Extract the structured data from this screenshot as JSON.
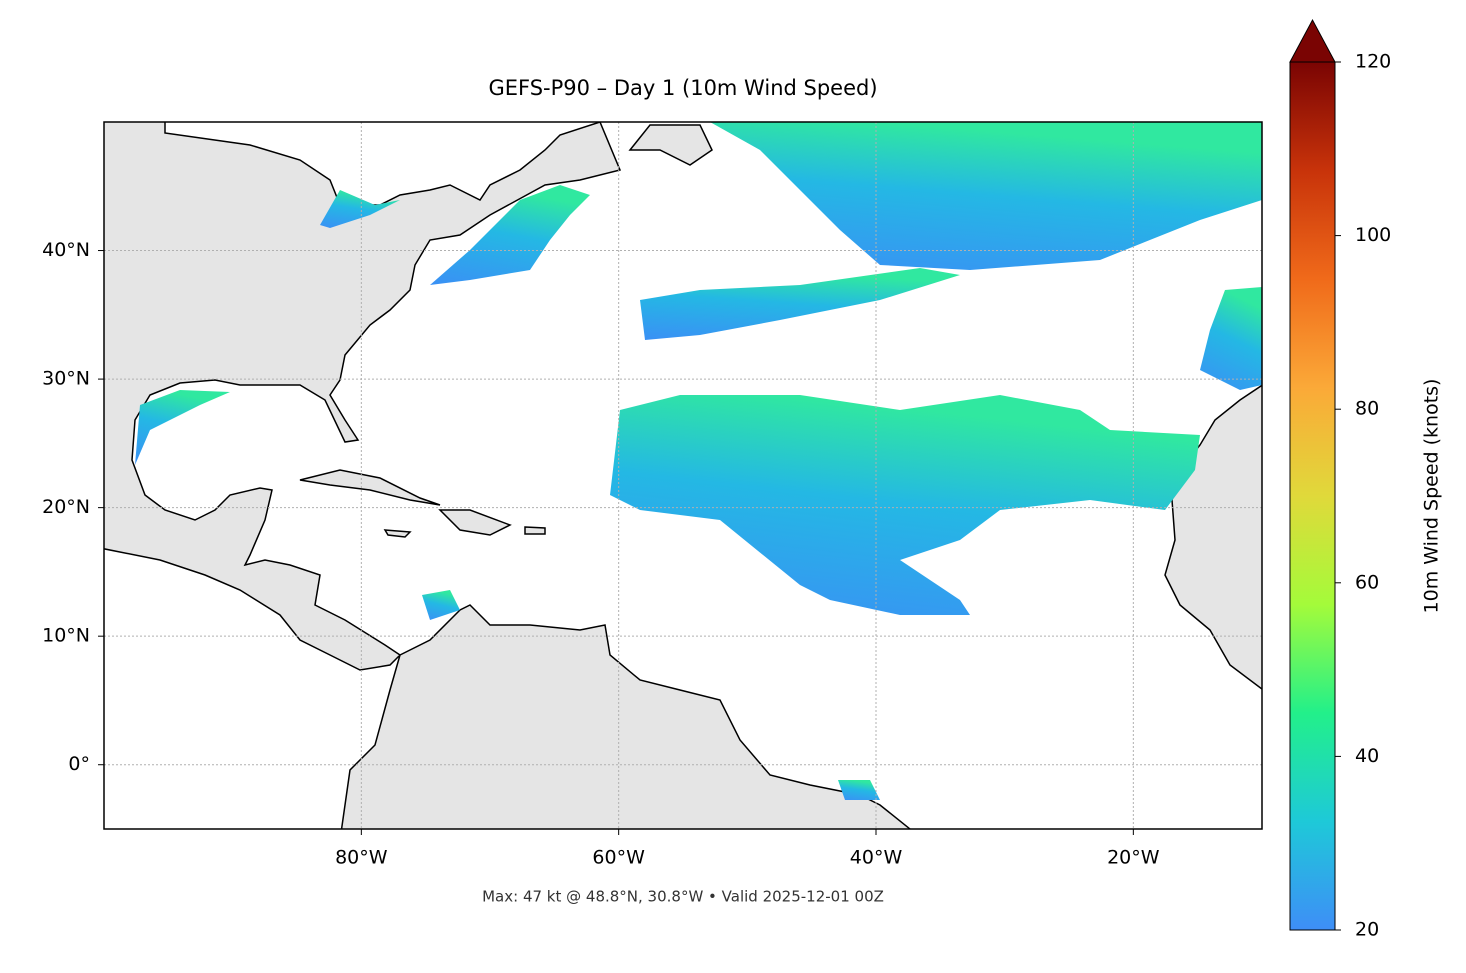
{
  "chart_data": {
    "type": "map",
    "title": "GEFS-P90 – Day 1 (10m Wind Speed)",
    "footer": "Max: 47 kt @ 48.8°N, 30.8°W • Valid 2025-12-01 00Z",
    "xlim": [
      -100,
      -10
    ],
    "ylim": [
      -5,
      50
    ],
    "xticks": [
      {
        "value": -80,
        "label": "80°W"
      },
      {
        "value": -60,
        "label": "60°W"
      },
      {
        "value": -40,
        "label": "40°W"
      },
      {
        "value": -20,
        "label": "20°W"
      }
    ],
    "yticks": [
      {
        "value": 0,
        "label": "0°"
      },
      {
        "value": 10,
        "label": "10°N"
      },
      {
        "value": 20,
        "label": "20°N"
      },
      {
        "value": 30,
        "label": "30°N"
      },
      {
        "value": 40,
        "label": "40°N"
      }
    ],
    "grid": true,
    "colorbar": {
      "label": "10m Wind Speed (knots)",
      "lim": [
        20,
        120
      ],
      "ticks": [
        20,
        40,
        60,
        80,
        100,
        120
      ],
      "colors": [
        "#3e8ef7",
        "#1ec9d8",
        "#22f08a",
        "#a4fb3a",
        "#e0d93a",
        "#fba938",
        "#f06a1a",
        "#c8330a",
        "#7a0403"
      ]
    }
  }
}
